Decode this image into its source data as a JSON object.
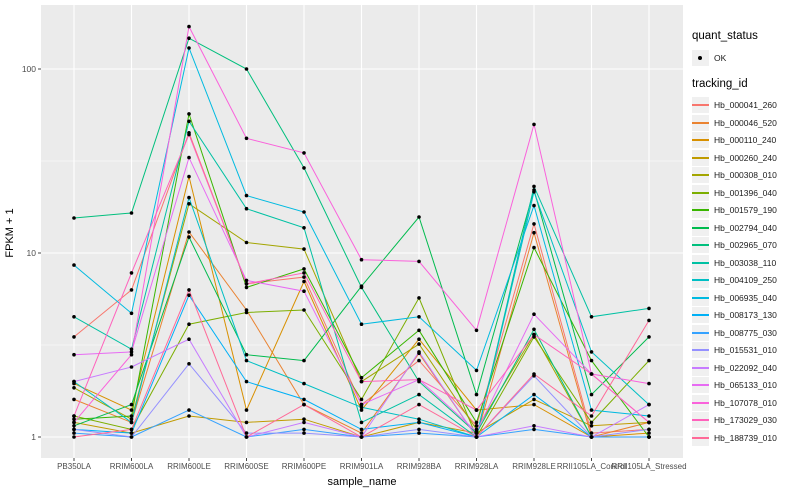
{
  "figure": {
    "background": "#FFFFFF",
    "panel_background": "#EBEBEB",
    "gridline_color": "#FFFFFF",
    "point_color": "#000000",
    "tick_label_color": "#4D4D4D"
  },
  "axes": {
    "x_title": "sample_name",
    "y_title": "FPKM + 1",
    "y_tick_labels": [
      "1",
      "10",
      "100"
    ],
    "x_tick_labels": [
      "PB350LA",
      "RRIM600LA",
      "RRIM600LE",
      "RRIM600SE",
      "RRIM600PE",
      "RRIM901LA",
      "RRIM928BA",
      "RRIM928LA",
      "RRIM928LE",
      "RRII105LA_Control",
      "RRII105LA_Stressed"
    ]
  },
  "legend": {
    "position": "right",
    "quant_status": {
      "title": "quant_status",
      "items": [
        {
          "label": "OK",
          "symbol": "black-point"
        }
      ]
    },
    "tracking_id": {
      "title": "tracking_id"
    }
  },
  "chart_data": {
    "type": "line",
    "title": "",
    "xlabel": "sample_name",
    "ylabel": "FPKM + 1",
    "y_scale": "log10",
    "ylim": [
      1,
      200
    ],
    "y_ticks": [
      1,
      10,
      100
    ],
    "y_minor_ticks": [
      3.162,
      31.62
    ],
    "grid": true,
    "legend_position": "right",
    "point_marker": "black dot (quant_status = OK)",
    "categories": [
      "PB350LA",
      "RRIM600LA",
      "RRIM600LE",
      "RRIM600SE",
      "RRIM600PE",
      "RRIM901LA",
      "RRIM928BA",
      "RRIM928LA",
      "RRIM928LE",
      "RRII105LA_Control",
      "RRII105LA_Stressed"
    ],
    "series": [
      {
        "name": "Hb_000041_260",
        "color": "#F8766D",
        "values": [
          3.5,
          6.3,
          45,
          6.8,
          7.4,
          1.5,
          2.6,
          1.15,
          14.4,
          1.05,
          1.1
        ]
      },
      {
        "name": "Hb_000046_520",
        "color": "#EA8331",
        "values": [
          1.6,
          1.2,
          13,
          4.9,
          1.5,
          1.05,
          2.85,
          1.0,
          12.9,
          1.0,
          1.2
        ]
      },
      {
        "name": "Hb_000110_240",
        "color": "#D89000",
        "values": [
          1.95,
          1.4,
          26,
          1.4,
          7.0,
          1.4,
          3.4,
          1.4,
          1.5,
          1.0,
          1.05
        ]
      },
      {
        "name": "Hb_000260_240",
        "color": "#C09B00",
        "values": [
          1.2,
          1.05,
          1.3,
          1.2,
          1.25,
          1.0,
          1.2,
          1.05,
          1.6,
          1.15,
          1.2
        ]
      },
      {
        "name": "Hb_000308_010",
        "color": "#A3A500",
        "values": [
          1.85,
          1.25,
          18.5,
          11.4,
          10.5,
          2.0,
          3.2,
          1.1,
          3.6,
          1.0,
          1.0
        ]
      },
      {
        "name": "Hb_001396_040",
        "color": "#7CAE00",
        "values": [
          1.3,
          1.1,
          4.1,
          4.75,
          4.9,
          1.6,
          5.7,
          1.0,
          3.5,
          1.2,
          2.6
        ]
      },
      {
        "name": "Hb_001579_190",
        "color": "#39B600",
        "values": [
          1.25,
          1.3,
          57,
          6.5,
          8.2,
          2.1,
          3.8,
          1.2,
          10.7,
          2.6,
          1.0
        ]
      },
      {
        "name": "Hb_002794_040",
        "color": "#00BB4E",
        "values": [
          1.15,
          1.5,
          12.2,
          2.8,
          2.6,
          6.6,
          15.7,
          1.7,
          22,
          1.7,
          3.5
        ]
      },
      {
        "name": "Hb_002965_070",
        "color": "#00BF7D",
        "values": [
          15.5,
          16.5,
          147,
          100,
          29,
          6.5,
          2.0,
          1.05,
          3.85,
          1.0,
          1.0
        ]
      },
      {
        "name": "Hb_003038_110",
        "color": "#00C1A3",
        "values": [
          4.5,
          3.0,
          52,
          17.4,
          13.7,
          1.2,
          1.7,
          1.0,
          23,
          4.5,
          5.0
        ]
      },
      {
        "name": "Hb_004109_250",
        "color": "#00BFC4",
        "values": [
          2.0,
          1.2,
          20,
          2.6,
          1.95,
          1.45,
          1.25,
          1.0,
          21.5,
          2.9,
          1.5
        ]
      },
      {
        "name": "Hb_006935_040",
        "color": "#00BAE0",
        "values": [
          8.6,
          4.7,
          130,
          20.5,
          16.7,
          4.1,
          4.5,
          2.3,
          18.1,
          1.4,
          1.3
        ]
      },
      {
        "name": "Hb_008173_130",
        "color": "#00B0F6",
        "values": [
          1.1,
          1.05,
          5.9,
          2.0,
          1.6,
          1.1,
          1.2,
          1.0,
          1.7,
          1.0,
          1.0
        ]
      },
      {
        "name": "Hb_008775_030",
        "color": "#35A2FF",
        "values": [
          1.05,
          1.0,
          1.4,
          1.0,
          1.1,
          1.0,
          1.05,
          1.0,
          1.1,
          1.0,
          1.0
        ]
      },
      {
        "name": "Hb_015531_010",
        "color": "#9590FF",
        "values": [
          1.1,
          1.0,
          2.5,
          1.05,
          1.05,
          1.0,
          1.1,
          1.0,
          2.15,
          1.0,
          1.1
        ]
      },
      {
        "name": "Hb_022092_040",
        "color": "#C77CFF",
        "values": [
          2.0,
          2.4,
          3.4,
          1.0,
          1.2,
          1.0,
          2.9,
          1.0,
          1.15,
          1.0,
          1.5
        ]
      },
      {
        "name": "Hb_065133_010",
        "color": "#E76BF3",
        "values": [
          2.8,
          2.9,
          33,
          7.1,
          6.2,
          1.5,
          2.05,
          1.07,
          4.65,
          2.2,
          1.2
        ]
      },
      {
        "name": "Hb_107078_010",
        "color": "#FA62DB",
        "values": [
          1.2,
          2.8,
          170,
          42,
          35,
          9.2,
          9.0,
          3.8,
          50,
          2.2,
          1.95
        ]
      },
      {
        "name": "Hb_173029_030",
        "color": "#FF62BC",
        "values": [
          1.3,
          7.8,
          44,
          6.8,
          7.8,
          2.0,
          2.05,
          1.4,
          3.6,
          2.2,
          1.2
        ]
      },
      {
        "name": "Hb_188739_010",
        "color": "#FF6A98",
        "values": [
          1.0,
          1.1,
          6.3,
          1.0,
          1.5,
          1.0,
          1.5,
          1.0,
          2.2,
          1.3,
          4.3
        ]
      }
    ]
  }
}
